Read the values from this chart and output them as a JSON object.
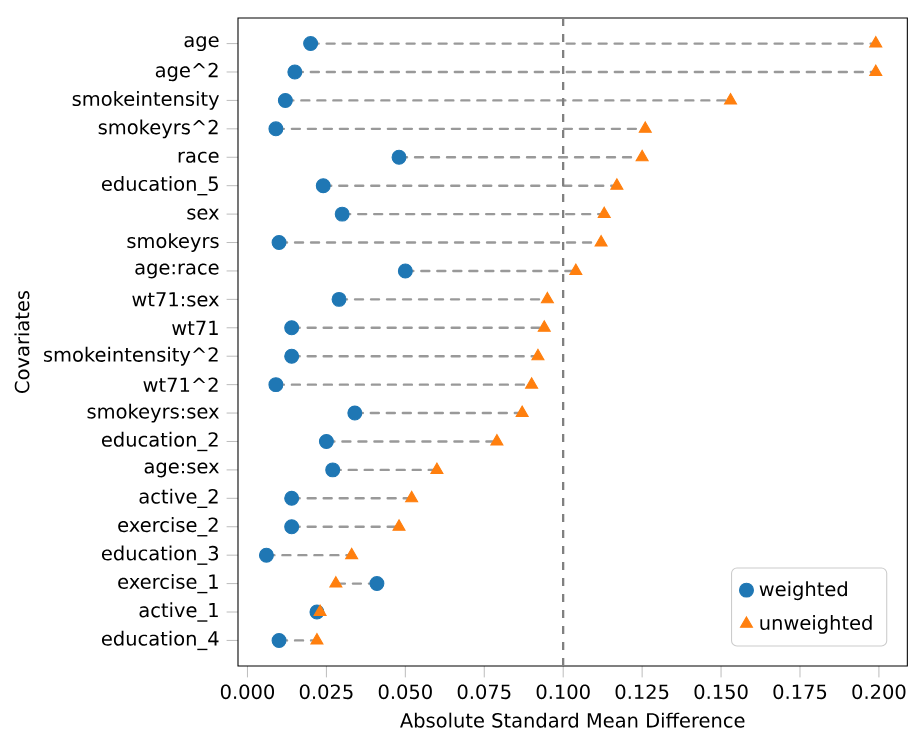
{
  "chart_data": {
    "type": "scatter",
    "xlabel": "Absolute Standard Mean Difference",
    "ylabel": "Covariates",
    "categories": [
      "age",
      "age^2",
      "smokeintensity",
      "smokeyrs^2",
      "race",
      "education_5",
      "sex",
      "smokeyrs",
      "age:race",
      "wt71:sex",
      "wt71",
      "smokeintensity^2",
      "wt71^2",
      "smokeyrs:sex",
      "education_2",
      "age:sex",
      "active_2",
      "exercise_2",
      "education_3",
      "exercise_1",
      "active_1",
      "education_4"
    ],
    "orientation": "horizontal",
    "series": [
      {
        "name": "weighted",
        "color": "#1f77b4",
        "marker": "circle",
        "values": [
          0.02,
          0.015,
          0.012,
          0.009,
          0.048,
          0.024,
          0.03,
          0.01,
          0.05,
          0.029,
          0.014,
          0.014,
          0.009,
          0.034,
          0.025,
          0.027,
          0.014,
          0.014,
          0.006,
          0.041,
          0.022,
          0.01
        ]
      },
      {
        "name": "unweighted",
        "color": "#ff7f0e",
        "marker": "triangle",
        "values": [
          0.199,
          0.199,
          0.153,
          0.126,
          0.125,
          0.117,
          0.113,
          0.112,
          0.104,
          0.095,
          0.094,
          0.092,
          0.09,
          0.087,
          0.079,
          0.06,
          0.052,
          0.048,
          0.033,
          0.028,
          0.023,
          0.022
        ]
      }
    ],
    "xlim": [
      -0.003,
      0.209
    ],
    "xticks": [
      {
        "value": 0,
        "label": "0.000"
      },
      {
        "value": 0.025,
        "label": "0.025"
      },
      {
        "value": 0.05,
        "label": "0.050"
      },
      {
        "value": 0.075,
        "label": "0.075"
      },
      {
        "value": 0.1,
        "label": "0.100"
      },
      {
        "value": 0.125,
        "label": "0.125"
      },
      {
        "value": 0.15,
        "label": "0.150"
      },
      {
        "value": 0.175,
        "label": "0.175"
      },
      {
        "value": 0.2,
        "label": "0.200"
      }
    ],
    "ref_lines": [
      {
        "axis": "x",
        "value": 0.1,
        "color": "#808080",
        "line_style": "dashed"
      }
    ],
    "legend": "bottom right",
    "grid": false
  }
}
